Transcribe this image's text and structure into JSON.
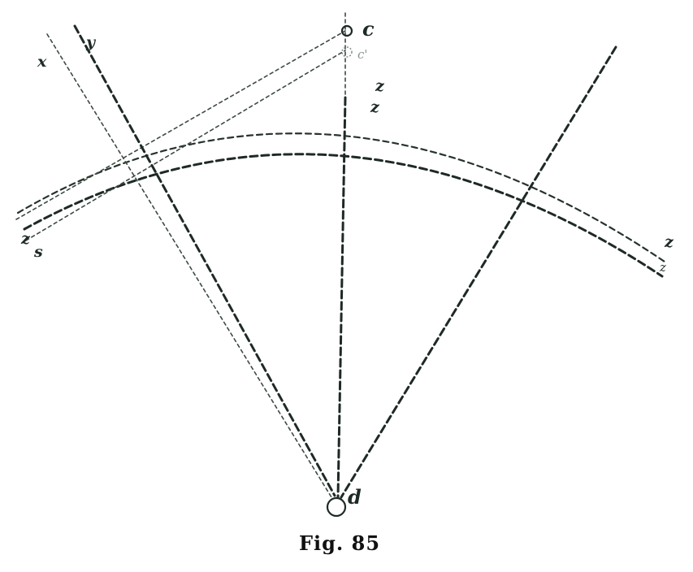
{
  "caption": "Fig. 85",
  "labels": {
    "x": "x",
    "y": "y",
    "c": "c",
    "c_prime": "c'",
    "z_top_outer": "z",
    "z_top_inner": "z",
    "z_left": "z",
    "s_left": "s",
    "z_right": "z",
    "z_right_inner": "z",
    "d": "d"
  },
  "colors": {
    "ink": "#1e2a24",
    "paper": "#ffffff"
  }
}
